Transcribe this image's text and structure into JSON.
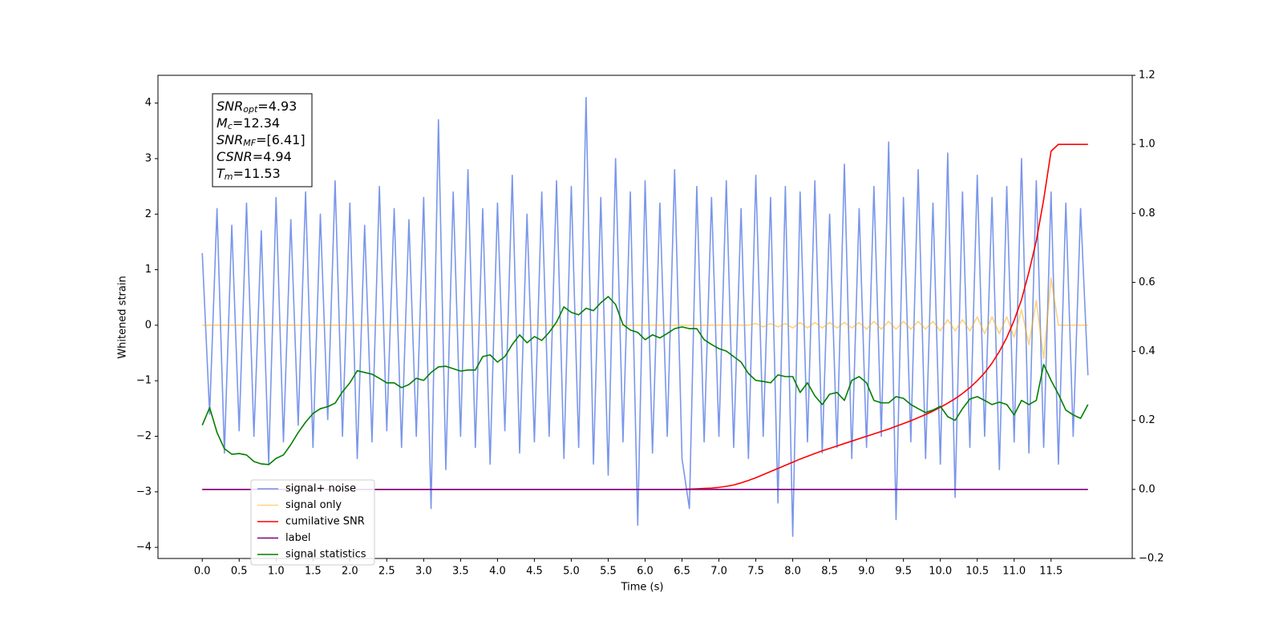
{
  "chart_data": {
    "type": "line",
    "xlabel": "Time (s)",
    "ylabel": "Whitened strain",
    "xlim": [
      -0.6,
      12.6
    ],
    "ylim": [
      -4.2,
      4.5
    ],
    "y2lim": [
      -0.2,
      1.2
    ],
    "xticks": [
      {
        "value": 0,
        "label": "0.0"
      },
      0.5,
      {
        "value": 1,
        "label": "1.0"
      },
      1.5,
      {
        "value": 2,
        "label": "2.0"
      },
      2.5,
      {
        "value": 3,
        "label": "3.0"
      },
      3.5,
      {
        "value": 4,
        "label": "4.0"
      },
      4.5,
      {
        "value": 5,
        "label": "5.0"
      },
      5.5,
      {
        "value": 6,
        "label": "6.0"
      },
      6.5,
      {
        "value": 7,
        "label": "7.0"
      },
      7.5,
      {
        "value": 8,
        "label": "8.0"
      },
      8.5,
      {
        "value": 9,
        "label": "9.0"
      },
      9.5,
      {
        "value": 10,
        "label": "10.0"
      },
      10.5,
      {
        "value": 11,
        "label": "11.0"
      },
      11.5
    ],
    "yticks": [
      {
        "value": -4,
        "label": "−4"
      },
      {
        "value": -3,
        "label": "−3"
      },
      {
        "value": -2,
        "label": "−2"
      },
      {
        "value": -1,
        "label": "−1"
      },
      0,
      1,
      2,
      3,
      4
    ],
    "y2ticks": [
      {
        "value": -0.2,
        "label": "−0.2"
      },
      {
        "value": 0,
        "label": "0.0"
      },
      0.2,
      0.4,
      0.6,
      0.8,
      {
        "value": 1,
        "label": "1.0"
      },
      1.2
    ],
    "legend": "lower left",
    "annotations": [
      {
        "base": "SNR",
        "sub": "opt",
        "text": "=4.93"
      },
      {
        "base": "M",
        "sub": "c",
        "text": "=12.34"
      },
      {
        "base": "SNR",
        "sub": "MF",
        "text": "=[6.41]"
      },
      {
        "base": "CSNR",
        "sub": "",
        "text": "=4.94"
      },
      {
        "base": "T",
        "sub": "m",
        "text": "=11.53"
      }
    ],
    "x": [
      0,
      0.1,
      0.2,
      0.3,
      0.4,
      0.5,
      0.6,
      0.7,
      0.8,
      0.9,
      1,
      1.1,
      1.2,
      1.3,
      1.4,
      1.5,
      1.6,
      1.7,
      1.8,
      1.9,
      2,
      2.1,
      2.2,
      2.3,
      2.4,
      2.5,
      2.6,
      2.7,
      2.8,
      2.9,
      3,
      3.1,
      3.2,
      3.3,
      3.4,
      3.5,
      3.6,
      3.7,
      3.8,
      3.9,
      4,
      4.1,
      4.2,
      4.3,
      4.4,
      4.5,
      4.6,
      4.7,
      4.8,
      4.9,
      5,
      5.1,
      5.2,
      5.3,
      5.4,
      5.5,
      5.6,
      5.7,
      5.8,
      5.9,
      6,
      6.1,
      6.2,
      6.3,
      6.4,
      6.5,
      6.6,
      6.7,
      6.8,
      6.9,
      7,
      7.1,
      7.2,
      7.3,
      7.4,
      7.5,
      7.6,
      7.7,
      7.8,
      7.9,
      8,
      8.1,
      8.2,
      8.3,
      8.4,
      8.5,
      8.6,
      8.7,
      8.8,
      8.9,
      9,
      9.1,
      9.2,
      9.3,
      9.4,
      9.5,
      9.6,
      9.7,
      9.8,
      9.9,
      10,
      10.1,
      10.2,
      10.3,
      10.4,
      10.5,
      10.6,
      10.7,
      10.8,
      10.9,
      11,
      11.1,
      11.2,
      11.3,
      11.4,
      11.5,
      11.6,
      11.7,
      11.8,
      11.9,
      12
    ],
    "series": [
      {
        "name": "signal+ noise",
        "color": "#4169e1",
        "opacity": 0.7,
        "axis": "y",
        "values": [
          1.3,
          -1.6,
          2.1,
          -2.3,
          1.8,
          -1.9,
          2.2,
          -2.0,
          1.7,
          -2.5,
          2.3,
          -2.1,
          1.9,
          -1.8,
          2.4,
          -2.2,
          2.0,
          -1.7,
          2.6,
          -2.0,
          2.2,
          -2.4,
          1.8,
          -2.1,
          2.5,
          -1.9,
          2.1,
          -2.2,
          1.9,
          -2.0,
          2.3,
          -3.3,
          3.7,
          -2.6,
          2.4,
          -2.0,
          2.8,
          -2.2,
          2.1,
          -2.5,
          2.2,
          -1.9,
          2.7,
          -2.3,
          2.0,
          -2.1,
          2.4,
          -2.0,
          2.6,
          -2.4,
          2.5,
          -2.2,
          4.1,
          -2.5,
          2.3,
          -2.7,
          3.0,
          -2.1,
          2.4,
          -3.6,
          2.6,
          -2.3,
          2.2,
          -2.0,
          2.8,
          -2.4,
          -3.3,
          2.5,
          -2.1,
          2.3,
          -2.0,
          2.6,
          -2.2,
          2.1,
          -2.4,
          2.7,
          -2.0,
          2.3,
          -3.2,
          2.5,
          -3.8,
          2.4,
          -2.1,
          2.6,
          -2.3,
          2.0,
          -2.2,
          2.9,
          -2.4,
          2.1,
          -2.2,
          2.5,
          -2.0,
          3.3,
          -3.5,
          2.3,
          -2.1,
          2.8,
          -2.4,
          2.2,
          -2.5,
          3.1,
          -3.1,
          2.4,
          -2.2,
          2.7,
          -2.0,
          2.3,
          -2.6,
          2.5,
          -2.1,
          3.0,
          -2.3,
          2.6,
          -2.2,
          2.4,
          -2.5,
          2.2,
          -2.0,
          2.1,
          -0.9
        ]
      },
      {
        "name": "signal only",
        "color": "orange",
        "opacity": 0.5,
        "axis": "y",
        "values": [
          0,
          0,
          0,
          0,
          0,
          0,
          0,
          0,
          0,
          0,
          0,
          0,
          0,
          0,
          0,
          0,
          0,
          0,
          0,
          0,
          0,
          0,
          0,
          0,
          0,
          0,
          0,
          0,
          0,
          0,
          0,
          0,
          0,
          0,
          0,
          0,
          0,
          0,
          0,
          0,
          0,
          0,
          0,
          0,
          0,
          0,
          0,
          0,
          0,
          0,
          0,
          0,
          0,
          0,
          0,
          0,
          0,
          0,
          0,
          0,
          0,
          0,
          0,
          0,
          0,
          0,
          0,
          0,
          0,
          0,
          0,
          0,
          0,
          0,
          0,
          0.03,
          -0.03,
          0.03,
          -0.03,
          0.03,
          -0.05,
          0.05,
          -0.05,
          0.05,
          -0.05,
          0.05,
          -0.05,
          0.05,
          -0.05,
          0.05,
          -0.07,
          0.07,
          -0.07,
          0.07,
          -0.07,
          0.07,
          -0.07,
          0.07,
          -0.07,
          0.07,
          -0.1,
          0.1,
          -0.1,
          0.1,
          -0.1,
          0.15,
          -0.15,
          0.15,
          -0.15,
          0.15,
          -0.22,
          0.28,
          -0.35,
          0.45,
          -0.6,
          0.85,
          0,
          0,
          0,
          0,
          0
        ]
      },
      {
        "name": "cumilative SNR",
        "color": "red",
        "opacity": 1,
        "axis": "y2",
        "values": [
          0,
          0,
          0,
          0,
          0,
          0,
          0,
          0,
          0,
          0,
          0,
          0,
          0,
          0,
          0,
          0,
          0,
          0,
          0,
          0,
          0,
          0,
          0,
          0,
          0,
          0,
          0,
          0,
          0,
          0,
          0,
          0,
          0,
          0,
          0,
          0,
          0,
          0,
          0,
          0,
          0,
          0,
          0,
          0,
          0,
          0,
          0,
          0,
          0,
          0,
          0,
          0,
          0,
          0,
          0,
          0,
          0,
          0,
          0,
          0,
          0,
          0,
          0,
          0,
          0,
          0,
          0.001,
          0.002,
          0.003,
          0.004,
          0.006,
          0.009,
          0.013,
          0.019,
          0.026,
          0.034,
          0.043,
          0.052,
          0.061,
          0.07,
          0.079,
          0.088,
          0.096,
          0.104,
          0.112,
          0.119,
          0.126,
          0.133,
          0.14,
          0.147,
          0.154,
          0.161,
          0.168,
          0.175,
          0.183,
          0.191,
          0.199,
          0.208,
          0.217,
          0.227,
          0.238,
          0.25,
          0.263,
          0.278,
          0.295,
          0.315,
          0.338,
          0.366,
          0.4,
          0.44,
          0.49,
          0.55,
          0.63,
          0.72,
          0.84,
          0.98,
          1,
          1,
          1,
          1,
          1
        ]
      },
      {
        "name": "label",
        "color": "purple",
        "opacity": 1,
        "axis": "y2",
        "values": [
          0,
          0,
          0,
          0,
          0,
          0,
          0,
          0,
          0,
          0,
          0,
          0,
          0,
          0,
          0,
          0,
          0,
          0,
          0,
          0,
          0,
          0,
          0,
          0,
          0,
          0,
          0,
          0,
          0,
          0,
          0,
          0,
          0,
          0,
          0,
          0,
          0,
          0,
          0,
          0,
          0,
          0,
          0,
          0,
          0,
          0,
          0,
          0,
          0,
          0,
          0,
          0,
          0,
          0,
          0,
          0,
          0,
          0,
          0,
          0,
          0,
          0,
          0,
          0,
          0,
          0,
          0,
          0,
          0,
          0,
          0,
          0,
          0,
          0,
          0,
          0,
          0,
          0,
          0,
          0,
          0,
          0,
          0,
          0,
          0,
          0,
          0,
          0,
          0,
          0,
          0,
          0,
          0,
          0,
          0,
          0,
          0,
          0,
          0,
          0,
          0,
          0,
          0,
          0,
          0,
          0,
          0,
          0,
          0,
          0,
          0,
          0,
          0,
          0,
          0,
          0,
          0,
          0,
          0,
          0,
          0
        ]
      },
      {
        "name": "signal statistics",
        "color": "green",
        "opacity": 1,
        "axis": "y2",
        "values": [
          0.186,
          0.237,
          0.165,
          0.118,
          0.102,
          0.104,
          0.1,
          0.081,
          0.074,
          0.072,
          0.09,
          0.1,
          0.13,
          0.165,
          0.195,
          0.22,
          0.234,
          0.24,
          0.25,
          0.283,
          0.309,
          0.344,
          0.339,
          0.334,
          0.322,
          0.309,
          0.309,
          0.295,
          0.304,
          0.322,
          0.316,
          0.339,
          0.355,
          0.357,
          0.35,
          0.343,
          0.346,
          0.346,
          0.385,
          0.39,
          0.369,
          0.385,
          0.42,
          0.448,
          0.425,
          0.443,
          0.432,
          0.455,
          0.485,
          0.529,
          0.513,
          0.506,
          0.525,
          0.518,
          0.541,
          0.559,
          0.536,
          0.478,
          0.462,
          0.455,
          0.434,
          0.448,
          0.439,
          0.452,
          0.466,
          0.471,
          0.466,
          0.466,
          0.434,
          0.42,
          0.408,
          0.401,
          0.385,
          0.369,
          0.336,
          0.316,
          0.313,
          0.309,
          0.332,
          0.327,
          0.327,
          0.281,
          0.309,
          0.271,
          0.246,
          0.276,
          0.281,
          0.258,
          0.316,
          0.327,
          0.309,
          0.258,
          0.251,
          0.251,
          0.269,
          0.264,
          0.246,
          0.234,
          0.223,
          0.23,
          0.241,
          0.211,
          0.2,
          0.234,
          0.262,
          0.269,
          0.258,
          0.246,
          0.253,
          0.246,
          0.216,
          0.258,
          0.246,
          0.258,
          0.362,
          0.316,
          0.276,
          0.23,
          0.216,
          0.206,
          0.246
        ]
      }
    ]
  }
}
